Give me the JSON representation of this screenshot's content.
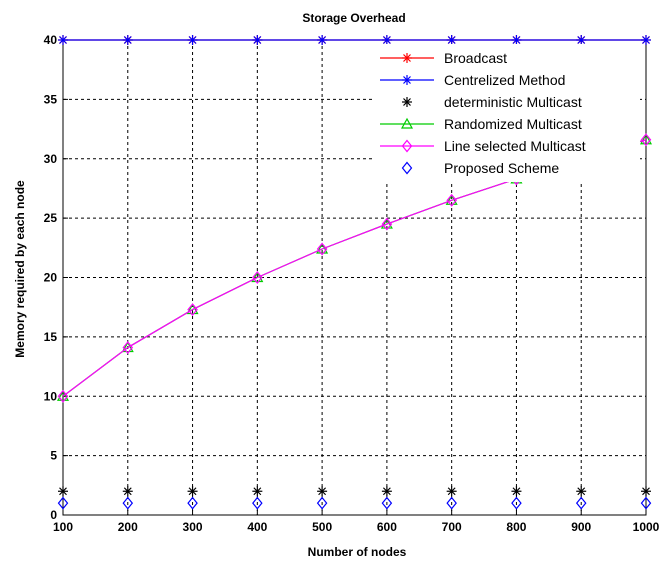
{
  "chart_data": {
    "type": "line",
    "title": "Storage Overhead",
    "xlabel": "Number of nodes",
    "ylabel": "Memory required by each node",
    "x": [
      100,
      200,
      300,
      400,
      500,
      600,
      700,
      800,
      900,
      1000
    ],
    "xlim": [
      100,
      1000
    ],
    "ylim": [
      0,
      40
    ],
    "xticks": [
      "100",
      "200",
      "300",
      "400",
      "500",
      "600",
      "700",
      "800",
      "900",
      "1000"
    ],
    "yticks": [
      "0",
      "5",
      "10",
      "15",
      "20",
      "25",
      "30",
      "35",
      "40"
    ],
    "grid": true,
    "legend_position": "top-right",
    "series": [
      {
        "name": "Broadcast",
        "values": [
          40,
          40,
          40,
          40,
          40,
          40,
          40,
          40,
          40,
          40
        ],
        "color": "#ff0000",
        "marker": "star"
      },
      {
        "name": "Centrelized Method",
        "values": [
          40,
          40,
          40,
          40,
          40,
          40,
          40,
          40,
          40,
          40
        ],
        "color": "#0000ff",
        "marker": "star"
      },
      {
        "name": "deterministic Multicast",
        "values": [
          2,
          2,
          2,
          2,
          2,
          2,
          2,
          2,
          2,
          2
        ],
        "color": "#000000",
        "marker": "star",
        "line": false
      },
      {
        "name": "Randomized Multicast",
        "values": [
          10,
          14.1,
          17.3,
          20,
          22.4,
          24.5,
          26.5,
          28.3,
          30,
          31.6
        ],
        "color": "#00cc00",
        "marker": "triangle"
      },
      {
        "name": "Line selected Multicast",
        "values": [
          10,
          14.1,
          17.3,
          20,
          22.4,
          24.5,
          26.5,
          28.3,
          30,
          31.6
        ],
        "color": "#ff00ff",
        "marker": "diamond"
      },
      {
        "name": "Proposed Scheme",
        "values": [
          1,
          1,
          1,
          1,
          1,
          1,
          1,
          1,
          1,
          1
        ],
        "color": "#0000ff",
        "marker": "diamond",
        "line": false
      }
    ]
  }
}
